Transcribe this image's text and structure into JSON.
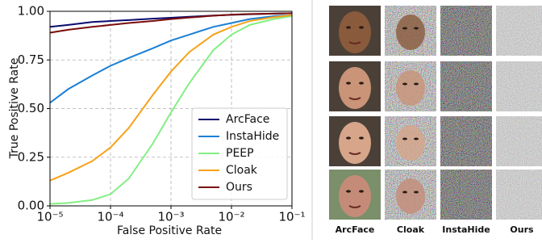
{
  "chart_data": {
    "type": "line",
    "xlabel": "False Positive Rate",
    "ylabel": "True Positive Rate",
    "x": [
      1e-05,
      2e-05,
      5e-05,
      0.0001,
      0.0002,
      0.0005,
      0.001,
      0.002,
      0.005,
      0.01,
      0.02,
      0.05,
      0.1
    ],
    "series": [
      {
        "name": "ArcFace",
        "color": "#0a0a6e",
        "values": [
          0.92,
          0.93,
          0.945,
          0.95,
          0.955,
          0.962,
          0.967,
          0.972,
          0.978,
          0.982,
          0.985,
          0.988,
          0.99
        ]
      },
      {
        "name": "InstaHide",
        "color": "#1a7fd6",
        "values": [
          0.53,
          0.6,
          0.67,
          0.72,
          0.76,
          0.81,
          0.85,
          0.88,
          0.92,
          0.94,
          0.96,
          0.975,
          0.98
        ]
      },
      {
        "name": "PEEP",
        "color": "#84ee84",
        "values": [
          0.01,
          0.015,
          0.03,
          0.06,
          0.14,
          0.32,
          0.48,
          0.63,
          0.8,
          0.88,
          0.93,
          0.96,
          0.975
        ]
      },
      {
        "name": "Cloak",
        "color": "#f5a21a",
        "values": [
          0.13,
          0.17,
          0.23,
          0.3,
          0.4,
          0.57,
          0.69,
          0.79,
          0.88,
          0.92,
          0.95,
          0.97,
          0.98
        ]
      },
      {
        "name": "Ours",
        "color": "#7a0c0c",
        "values": [
          0.89,
          0.905,
          0.92,
          0.93,
          0.94,
          0.95,
          0.96,
          0.968,
          0.977,
          0.983,
          0.986,
          0.988,
          0.99
        ]
      }
    ],
    "xscale": "log",
    "xlim": [
      1e-05,
      0.1
    ],
    "xticks": [
      {
        "value": 1e-05,
        "label": "10⁻⁵"
      },
      {
        "value": 0.0001,
        "label": "10⁻⁴"
      },
      {
        "value": 0.001,
        "label": "10⁻³"
      },
      {
        "value": 0.01,
        "label": "10⁻²"
      },
      {
        "value": 0.1,
        "label": "10⁻¹"
      }
    ],
    "ylim": [
      0,
      1
    ],
    "yticks": [
      {
        "value": 0,
        "label": "0.00"
      },
      {
        "value": 0.25,
        "label": "0.25"
      },
      {
        "value": 0.5,
        "label": "0.50"
      },
      {
        "value": 0.75,
        "label": "0.75"
      },
      {
        "value": 1,
        "label": "1.00"
      }
    ],
    "grid": true,
    "legend": "lower right"
  },
  "image_panel": {
    "column_labels": [
      "ArcFace",
      "Cloak",
      "InstaHide",
      "Ours"
    ]
  }
}
